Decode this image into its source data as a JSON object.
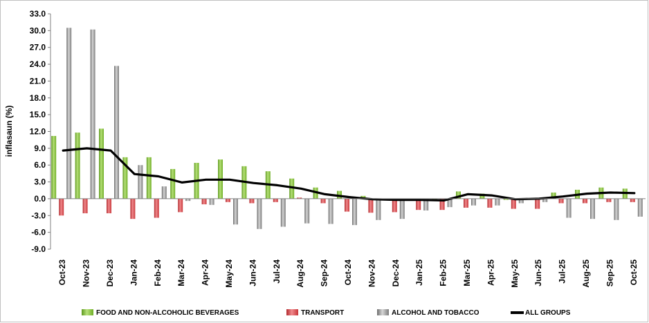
{
  "chart_data": {
    "type": "bar",
    "title": "",
    "xlabel": "",
    "ylabel": "inflasaun (%)",
    "ylim": [
      -9.0,
      33.0
    ],
    "ytick_step": 3.0,
    "yticks": [
      "33.0",
      "30.0",
      "27.0",
      "24.0",
      "21.0",
      "18.0",
      "15.0",
      "12.0",
      "9.0",
      "6.0",
      "3.0",
      "0.0",
      "-3.0",
      "-6.0",
      "-9.0"
    ],
    "grid": false,
    "legend_position": "bottom",
    "categories": [
      "Oct-23",
      "Nov-23",
      "Dec-23",
      "Jan-24",
      "Feb-24",
      "Mar-24",
      "Apr-24",
      "May-24",
      "Jun-24",
      "Jul-24",
      "Aug-24",
      "Sep-24",
      "Oct-24",
      "Nov-24",
      "Dec-24",
      "Jan-25",
      "Feb-25",
      "Mar-25",
      "Apr-25",
      "May-25",
      "Jun-25",
      "Jul-25",
      "Aug-25",
      "Sep-25",
      "Oct-25"
    ],
    "series": [
      {
        "name": "FOOD AND NON-ALCOHOLIC BEVERAGES",
        "kind": "bar",
        "color": "#8cc63f",
        "values": [
          11.2,
          11.8,
          12.5,
          7.4,
          7.4,
          5.3,
          6.4,
          7.0,
          5.8,
          4.9,
          3.6,
          2.0,
          1.4,
          0.5,
          -0.2,
          -0.3,
          -0.3,
          1.3,
          0.9,
          -0.2,
          -0.1,
          1.1,
          1.6,
          2.0,
          1.8
        ]
      },
      {
        "name": "TRANSPORT",
        "kind": "bar",
        "color": "#e0474c",
        "values": [
          -3.0,
          -2.6,
          -2.6,
          -3.6,
          -3.4,
          -2.4,
          -1.0,
          -0.6,
          -0.8,
          -0.6,
          0.2,
          -0.8,
          -2.3,
          -2.5,
          -2.4,
          -2.0,
          -2.0,
          -1.6,
          -1.6,
          -1.8,
          -1.8,
          -0.8,
          -0.8,
          -0.6,
          -0.6
        ]
      },
      {
        "name": "ALCOHOL AND TOBACCO",
        "kind": "bar",
        "color": "#9e9e9e",
        "values": [
          30.5,
          30.2,
          23.7,
          6.0,
          2.2,
          -0.4,
          -1.1,
          -4.6,
          -5.4,
          -5.0,
          -4.4,
          -4.5,
          -4.7,
          -3.8,
          -3.6,
          -2.1,
          -1.5,
          -1.2,
          -1.2,
          -0.8,
          -0.6,
          -3.4,
          -3.6,
          -3.8,
          -3.2
        ]
      },
      {
        "name": "ALL GROUPS",
        "kind": "line",
        "color": "#000000",
        "values": [
          8.6,
          9.0,
          8.6,
          4.4,
          4.0,
          2.9,
          3.4,
          3.4,
          2.8,
          2.4,
          1.8,
          0.8,
          0.3,
          -0.1,
          -0.2,
          -0.2,
          -0.3,
          0.8,
          0.6,
          -0.1,
          0.0,
          0.4,
          0.9,
          1.1,
          1.0
        ]
      }
    ]
  }
}
